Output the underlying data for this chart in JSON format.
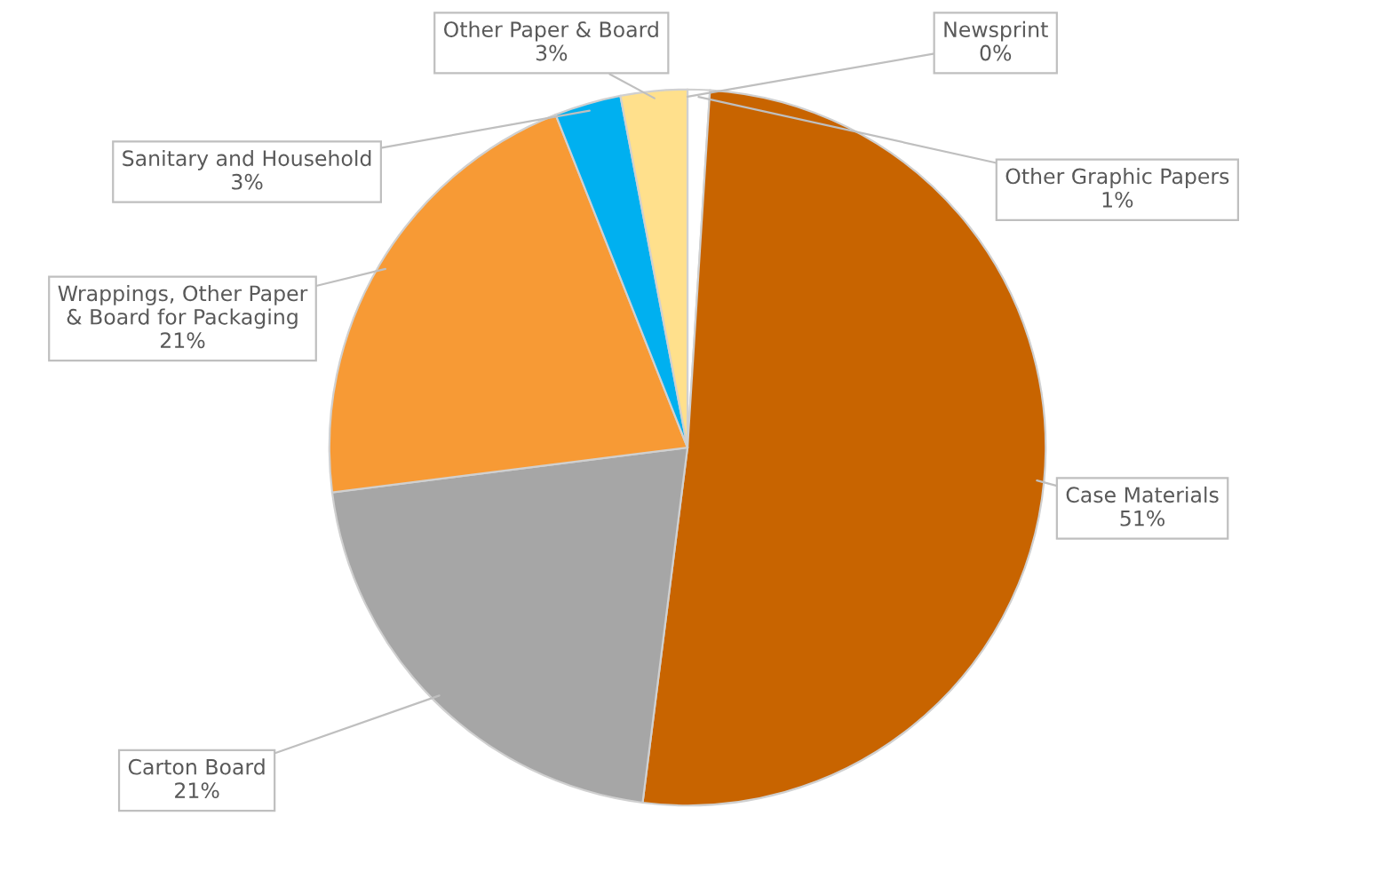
{
  "chart_data": {
    "type": "pie",
    "categories": [
      "Newsprint",
      "Other Graphic Papers",
      "Case Materials",
      "Carton Board",
      "Wrappings, Other Paper\n& Board for Packaging",
      "Sanitary and Household",
      "Other Paper & Board"
    ],
    "values": [
      0,
      1,
      51,
      21,
      21,
      3,
      3
    ],
    "value_labels": [
      "0%",
      "1%",
      "51%",
      "21%",
      "21%",
      "3%",
      "3%"
    ],
    "colors": [
      "#ffffff",
      "#ffffff",
      "#c86400",
      "#a6a6a6",
      "#f79a35",
      "#00b0f0",
      "#ffe08c"
    ],
    "legend": false
  }
}
